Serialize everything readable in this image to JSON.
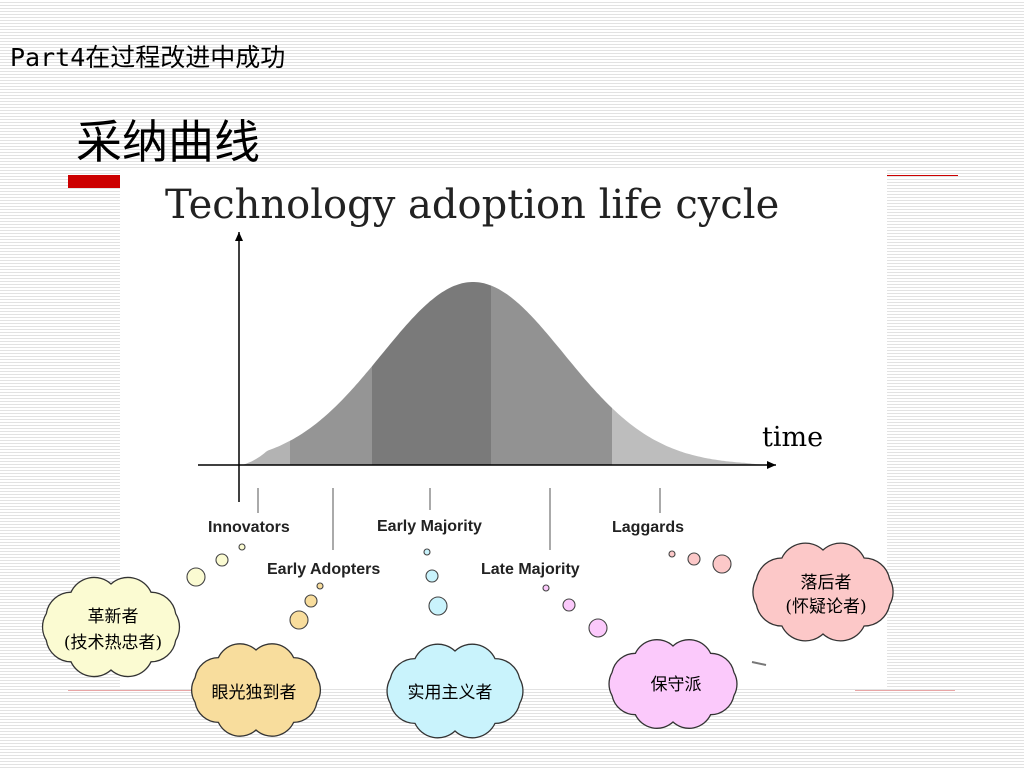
{
  "slide": {
    "section_title": "Part4在过程改进中成功",
    "title": "采纳曲线"
  },
  "figure": {
    "title": "Technology adoption life cycle",
    "axis_label": "time",
    "segments": [
      {
        "key": "innovators",
        "label": "Innovators",
        "fill": "#b3b3b3"
      },
      {
        "key": "early_adopters",
        "label": "Early Adopters",
        "fill": "#959595"
      },
      {
        "key": "early_majority",
        "label": "Early Majority",
        "fill": "#7a7a7a"
      },
      {
        "key": "late_majority",
        "label": "Late Majority",
        "fill": "#929292"
      },
      {
        "key": "laggards",
        "label": "Laggards",
        "fill": "#bdbdbd"
      }
    ]
  },
  "clouds": [
    {
      "key": "innovators",
      "lines": [
        "革新者",
        "(技术热忠者)"
      ],
      "fill": "#fbfbd2"
    },
    {
      "key": "early_adopters",
      "lines": [
        "眼光独到者"
      ],
      "fill": "#f8dd9d"
    },
    {
      "key": "early_majority",
      "lines": [
        "实用主义者"
      ],
      "fill": "#c9f3fc"
    },
    {
      "key": "late_majority",
      "lines": [
        "保守派"
      ],
      "fill": "#fbc9fb"
    },
    {
      "key": "laggards",
      "lines": [
        "落后者",
        "(怀疑论者)"
      ],
      "fill": "#fcc8c8"
    }
  ]
}
